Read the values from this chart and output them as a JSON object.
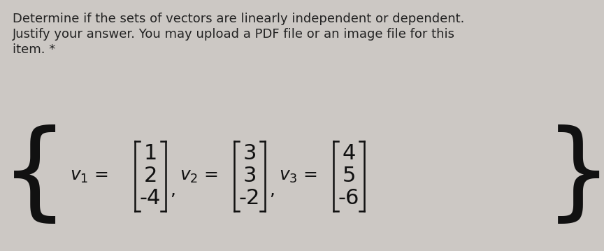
{
  "background_color": "#ccc8c4",
  "text_color": "#222222",
  "title_lines": [
    "Determine if the sets of vectors are linearly independent or dependent.",
    "Justify your answer. You may upload a PDF file or an image file for this",
    "item. *"
  ],
  "v1": [
    "1",
    "2",
    "-4"
  ],
  "v2": [
    "3",
    "3",
    "-2"
  ],
  "v3": [
    "4",
    "5",
    "-6"
  ],
  "title_fontsize": 13.0,
  "math_fontsize": 22,
  "label_fontsize": 18
}
